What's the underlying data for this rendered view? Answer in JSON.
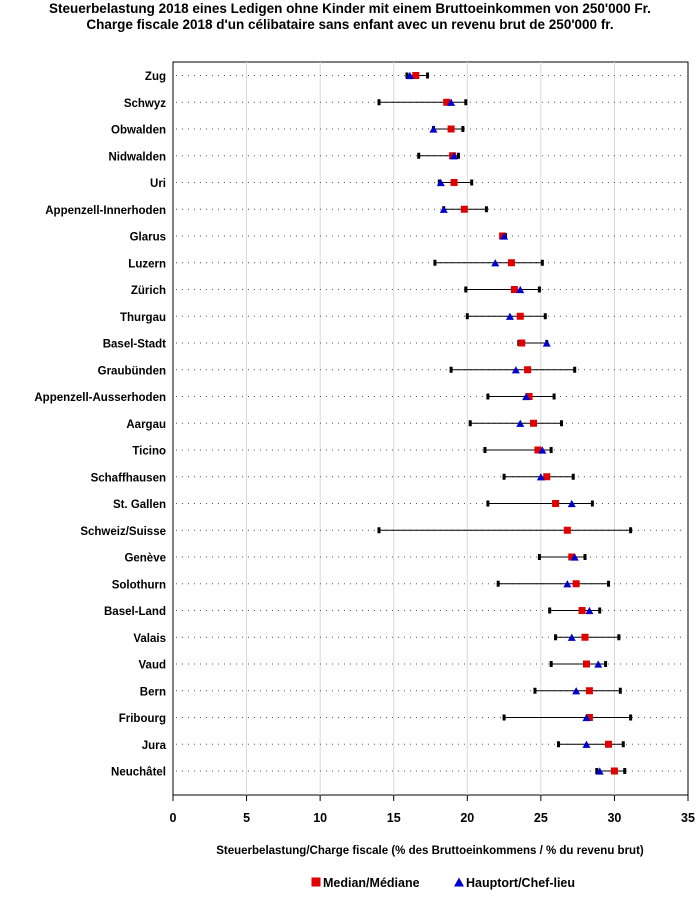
{
  "chart_data": {
    "type": "range-dot",
    "title": [
      "Steuerbelastung 2018 eines Ledigen ohne Kinder mit einem Bruttoeinkommen von 250'000 Fr.",
      "Charge fiscale 2018 d'un célibataire sans enfant avec un revenu brut de 250'000 fr."
    ],
    "xlabel": "Steuerbelastung/Charge fiscale (% des Bruttoeinkommens / % du revenu brut)",
    "xlim": [
      0,
      35
    ],
    "xticks": [
      0,
      5,
      10,
      15,
      20,
      25,
      30,
      35
    ],
    "grid": "vertical",
    "legend": {
      "position": "bottom",
      "entries": [
        {
          "name": "Median/Médiane",
          "marker": "square",
          "color": "#e00000"
        },
        {
          "name": "Hauptort/Chef-lieu",
          "marker": "triangle",
          "color": "#0000cc"
        }
      ]
    },
    "categories": [
      "Zug",
      "Schwyz",
      "Obwalden",
      "Nidwalden",
      "Uri",
      "Appenzell-Innerhoden",
      "Glarus",
      "Luzern",
      "Zürich",
      "Thurgau",
      "Basel-Stadt",
      "Graubünden",
      "Appenzell-Ausserhoden",
      "Aargau",
      "Ticino",
      "Schaffhausen",
      "St. Gallen",
      "Schweiz/Suisse",
      "Genève",
      "Solothurn",
      "Basel-Land",
      "Valais",
      "Vaud",
      "Bern",
      "Fribourg",
      "Jura",
      "Neuchâtel"
    ],
    "min": [
      15.9,
      14.0,
      17.7,
      16.7,
      18.1,
      18.4,
      22.3,
      17.8,
      19.9,
      20.0,
      23.5,
      18.9,
      21.4,
      20.2,
      21.2,
      22.5,
      21.4,
      14.0,
      24.9,
      22.1,
      25.6,
      26.0,
      25.7,
      24.6,
      22.5,
      26.2,
      28.8
    ],
    "max": [
      17.3,
      19.9,
      19.7,
      19.4,
      20.3,
      21.3,
      22.6,
      25.1,
      24.9,
      25.3,
      25.4,
      27.3,
      25.9,
      26.4,
      25.7,
      27.2,
      28.5,
      31.1,
      28.0,
      29.6,
      29.0,
      30.3,
      29.4,
      30.4,
      31.1,
      30.6,
      30.7
    ],
    "median": [
      16.5,
      18.6,
      18.9,
      19.0,
      19.1,
      19.8,
      22.4,
      23.0,
      23.2,
      23.6,
      23.7,
      24.1,
      24.2,
      24.5,
      24.8,
      25.4,
      26.0,
      26.8,
      27.1,
      27.4,
      27.8,
      28.0,
      28.1,
      28.3,
      28.3,
      29.6,
      30.0
    ],
    "capital": [
      16.1,
      18.9,
      17.7,
      19.1,
      18.2,
      18.4,
      22.5,
      21.9,
      23.6,
      22.9,
      25.4,
      23.3,
      24.0,
      23.6,
      25.1,
      25.0,
      27.1,
      null,
      27.3,
      26.8,
      28.3,
      27.1,
      28.9,
      27.4,
      28.1,
      28.1,
      29.0
    ]
  }
}
